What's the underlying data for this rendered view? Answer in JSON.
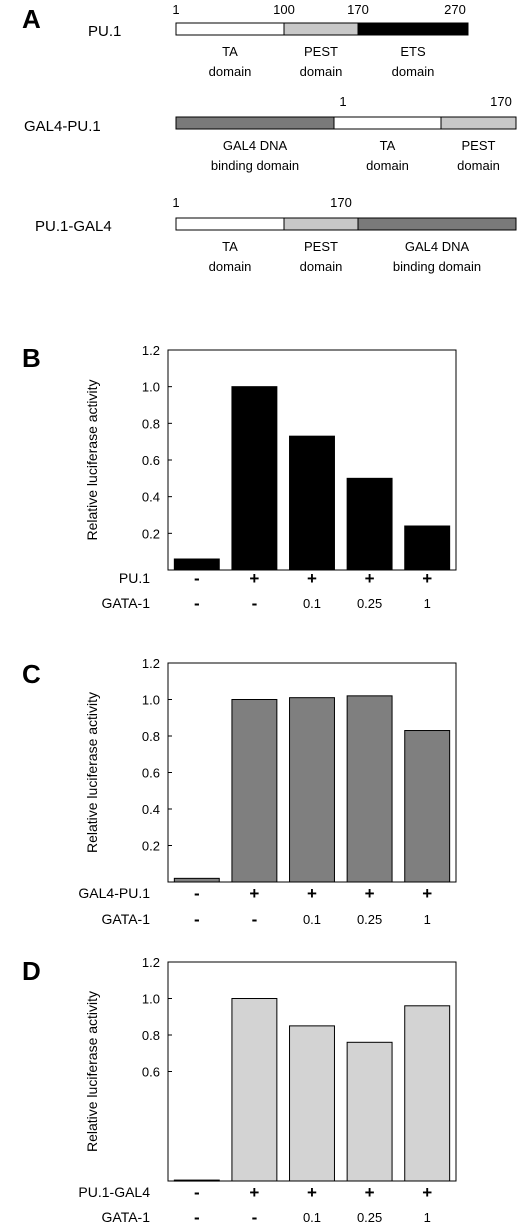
{
  "panel_a": {
    "label": "A",
    "constructs": [
      {
        "name": "PU.1",
        "numbers": [
          "1",
          "100",
          "170",
          "270"
        ],
        "segments": [
          {
            "color": "#ffffff",
            "label": [
              "TA",
              "domain"
            ]
          },
          {
            "color": "#c8c8c8",
            "label": [
              "PEST",
              "domain"
            ]
          },
          {
            "color": "#000000",
            "label": [
              "ETS",
              "domain"
            ]
          }
        ]
      },
      {
        "name": "GAL4-PU.1",
        "numbers": [
          "1",
          "170"
        ],
        "segments": [
          {
            "color": "#7a7a7a",
            "label": [
              "GAL4 DNA",
              "binding domain"
            ]
          },
          {
            "color": "#ffffff",
            "label": [
              "TA",
              "domain"
            ]
          },
          {
            "color": "#c8c8c8",
            "label": [
              "PEST",
              "domain"
            ]
          }
        ]
      },
      {
        "name": "PU.1-GAL4",
        "numbers": [
          "1",
          "170"
        ],
        "segments": [
          {
            "color": "#ffffff",
            "label": [
              "TA",
              "domain"
            ]
          },
          {
            "color": "#c8c8c8",
            "label": [
              "PEST",
              "domain"
            ]
          },
          {
            "color": "#7a7a7a",
            "label": [
              "GAL4 DNA",
              "binding domain"
            ]
          }
        ]
      }
    ]
  },
  "chart_data": [
    {
      "panel": "B",
      "type": "bar",
      "ylabel": "Relative luciferase activity",
      "ylim": [
        0,
        1.2
      ],
      "yticks": [
        "0.2",
        "0.4",
        "0.6",
        "0.8",
        "1.0",
        "1.2"
      ],
      "categories": [
        "1",
        "2",
        "3",
        "4",
        "5"
      ],
      "values": [
        0.06,
        1.0,
        0.73,
        0.5,
        0.24
      ],
      "bar_color": "#000000",
      "conditions": [
        {
          "name": "PU.1",
          "values": [
            "-",
            "+",
            "+",
            "+",
            "+"
          ]
        },
        {
          "name": "GATA-1",
          "values": [
            "-",
            "-",
            "0.1",
            "0.25",
            "1"
          ]
        }
      ]
    },
    {
      "panel": "C",
      "type": "bar",
      "ylabel": "Relative luciferase activity",
      "ylim": [
        0,
        1.2
      ],
      "yticks": [
        "0.2",
        "0.4",
        "0.6",
        "0.8",
        "1.0",
        "1.2"
      ],
      "categories": [
        "1",
        "2",
        "3",
        "4",
        "5"
      ],
      "values": [
        0.02,
        1.0,
        1.01,
        1.02,
        0.83
      ],
      "bar_color": "#7f7f7f",
      "conditions": [
        {
          "name": "GAL4-PU.1",
          "values": [
            "-",
            "+",
            "+",
            "+",
            "+"
          ]
        },
        {
          "name": "GATA-1",
          "values": [
            "-",
            "-",
            "0.1",
            "0.25",
            "1"
          ]
        }
      ]
    },
    {
      "panel": "D",
      "type": "bar",
      "ylabel": "Relative luciferase activity",
      "ylim": [
        0,
        1.2
      ],
      "yticks": [
        "0.6",
        "0.8",
        "1.0",
        "1.2"
      ],
      "categories": [
        "1",
        "2",
        "3",
        "4",
        "5"
      ],
      "values": [
        0.005,
        1.0,
        0.85,
        0.76,
        0.96
      ],
      "bar_color": "#d3d3d3",
      "conditions": [
        {
          "name": "PU.1-GAL4",
          "values": [
            "-",
            "+",
            "+",
            "+",
            "+"
          ]
        },
        {
          "name": "GATA-1",
          "values": [
            "-",
            "-",
            "0.1",
            "0.25",
            "1"
          ]
        }
      ]
    }
  ]
}
